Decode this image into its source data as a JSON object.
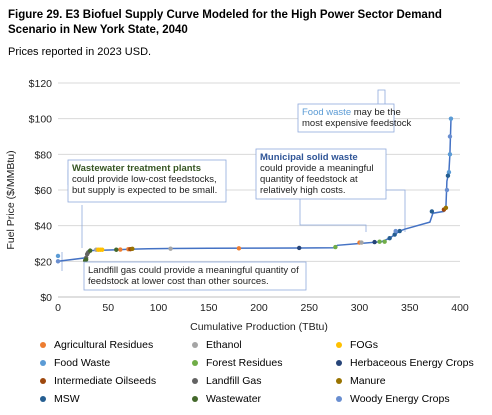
{
  "figure": {
    "title": "Figure 29. E3 Biofuel Supply Curve Modeled for the High Power Sector Demand Scenario in New York State, 2040",
    "subtitle": "Prices reported in 2023 USD."
  },
  "chart_data": {
    "type": "scatter",
    "xlabel": "Cumulative Production (TBtu)",
    "ylabel": "Fuel Price ($/MMBtu)",
    "xlim": [
      0,
      400
    ],
    "ylim": [
      0,
      120
    ],
    "x_ticks": [
      "0",
      "50",
      "100",
      "150",
      "200",
      "250",
      "300",
      "350",
      "400"
    ],
    "y_ticks": [
      "$0",
      "$20",
      "$40",
      "$60",
      "$80",
      "$100",
      "$120"
    ],
    "grid": "horizontal",
    "line_color": "#4472c4",
    "curve": [
      [
        0,
        20
      ],
      [
        28,
        22
      ],
      [
        30,
        26
      ],
      [
        60,
        26.5
      ],
      [
        70,
        26.8
      ],
      [
        90,
        27
      ],
      [
        110,
        27.2
      ],
      [
        150,
        27.3
      ],
      [
        200,
        27.4
      ],
      [
        240,
        27.5
      ],
      [
        275,
        27.6
      ],
      [
        278,
        29
      ],
      [
        300,
        30
      ],
      [
        322,
        31
      ],
      [
        330,
        33
      ],
      [
        340,
        37
      ],
      [
        345,
        38
      ],
      [
        370,
        42
      ],
      [
        373,
        47
      ],
      [
        384,
        48
      ],
      [
        386,
        50
      ],
      [
        387,
        65
      ],
      [
        389,
        70
      ],
      [
        390,
        80
      ],
      [
        391,
        100
      ]
    ],
    "series": [
      {
        "name": "Agricultural Residues",
        "color": "#ed7d31",
        "points": [
          [
            62,
            26.6
          ],
          [
            70,
            26.8
          ],
          [
            180,
            27.3
          ],
          [
            300,
            30.5
          ]
        ]
      },
      {
        "name": "Ethanol",
        "color": "#a5a5a5",
        "points": [
          [
            38,
            26.5
          ],
          [
            112,
            27.1
          ],
          [
            302,
            30.5
          ]
        ]
      },
      {
        "name": "FOGs",
        "color": "#ffc000",
        "points": [
          [
            40,
            26.5
          ],
          [
            42,
            26.5
          ],
          [
            44,
            26.5
          ]
        ]
      },
      {
        "name": "Food Waste",
        "color": "#5b9bd5",
        "points": [
          [
            391,
            100
          ],
          [
            390,
            80
          ],
          [
            389,
            70
          ],
          [
            0,
            23
          ]
        ]
      },
      {
        "name": "Forest Residues",
        "color": "#70ad47",
        "points": [
          [
            276,
            28
          ],
          [
            320,
            31
          ],
          [
            325,
            31
          ]
        ]
      },
      {
        "name": "Herbaceous Energy Crops",
        "color": "#264478",
        "points": [
          [
            240,
            27.5
          ],
          [
            315,
            30.8
          ]
        ]
      },
      {
        "name": "Intermediate Oilseeds",
        "color": "#9e480e",
        "points": [
          [
            72,
            26.8
          ],
          [
            384,
            49
          ]
        ]
      },
      {
        "name": "Landfill Gas",
        "color": "#636363",
        "points": [
          [
            28,
            22
          ],
          [
            29,
            24
          ],
          [
            30,
            25
          ]
        ]
      },
      {
        "name": "Manure",
        "color": "#997300",
        "points": [
          [
            74,
            27
          ],
          [
            386,
            50
          ]
        ]
      },
      {
        "name": "MSW",
        "color": "#255e91",
        "points": [
          [
            330,
            33
          ],
          [
            335,
            35
          ],
          [
            340,
            37
          ],
          [
            372,
            48
          ],
          [
            388,
            68
          ]
        ]
      },
      {
        "name": "Wastewater",
        "color": "#43682b",
        "points": [
          [
            27,
            20.5
          ],
          [
            28,
            21
          ],
          [
            32,
            26
          ],
          [
            58,
            26.5
          ]
        ]
      },
      {
        "name": "Woody Energy Crops",
        "color": "#698ed0",
        "points": [
          [
            0,
            20
          ],
          [
            336,
            37
          ],
          [
            387,
            60
          ],
          [
            390,
            90
          ]
        ]
      }
    ],
    "annotations": [
      {
        "lead": "Wastewater treatment plants",
        "lines": [
          "could provide low-cost feedstocks,",
          "but supply is expected to be small."
        ]
      },
      {
        "lead": "Municipal solid waste",
        "lines": [
          "could provide a meaningful",
          "quantity of feedstock at",
          "relatively high costs."
        ]
      },
      {
        "lead": "Food waste",
        "lead_tail": " may be the",
        "lines": [
          "most expensive feedstock"
        ]
      },
      {
        "lead": "",
        "lines": [
          "Landfill gas could provide a meaningful quantity of",
          "feedstock at lower cost than other sources."
        ]
      }
    ]
  }
}
